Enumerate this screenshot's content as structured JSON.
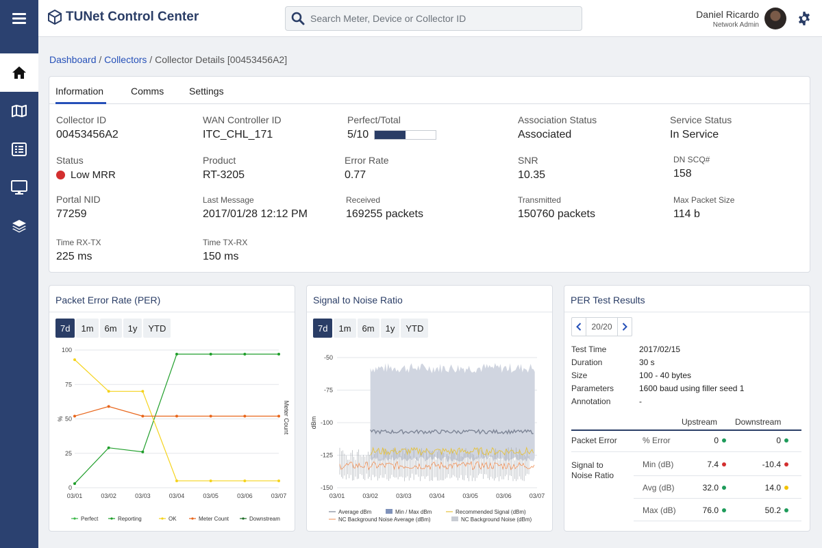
{
  "app": {
    "title": "TUNet Control Center"
  },
  "search": {
    "placeholder": "Search Meter, Device or Collector ID"
  },
  "user": {
    "name": "Daniel Ricardo",
    "role": "Network Admin"
  },
  "sidebar": {
    "items": [
      "home-icon",
      "map-icon",
      "list-icon",
      "monitor-icon",
      "layers-icon"
    ]
  },
  "breadcrumb": {
    "dashboard": "Dashboard",
    "collectors": "Collectors",
    "current": "Collector Details [00453456A2]",
    "sep": " / "
  },
  "tabs": [
    "Information",
    "Comms",
    "Settings"
  ],
  "info": {
    "collector_id": {
      "label": "Collector ID",
      "value": "00453456A2"
    },
    "wan_controller": {
      "label": "WAN Controller ID",
      "value": "ITC_CHL_171"
    },
    "perfect_total": {
      "label": "Perfect/Total",
      "value": "5/10",
      "fraction": 0.5
    },
    "association": {
      "label": "Association Status",
      "value": "Associated"
    },
    "service": {
      "label": "Service Status",
      "value": "In Service"
    },
    "status": {
      "label": "Status",
      "value": "Low MRR",
      "color": "#d32f2f"
    },
    "product": {
      "label": "Product",
      "value": "RT-3205"
    },
    "error_rate": {
      "label": "Error Rate",
      "value": "0.77"
    },
    "snr": {
      "label": "SNR",
      "value": "10.35"
    },
    "dn_scq": {
      "label": "DN SCQ#",
      "value": "158"
    },
    "portal_nid": {
      "label": "Portal NID",
      "value": "77259"
    },
    "last_message": {
      "label": "Last Message",
      "value": "2017/01/28 12:12 PM"
    },
    "received": {
      "label": "Received",
      "value": "169255 packets"
    },
    "transmitted": {
      "label": "Transmitted",
      "value": "150760 packets"
    },
    "max_packet": {
      "label": "Max Packet Size",
      "value": "114 b"
    },
    "time_rx_tx": {
      "label": "Time RX-TX",
      "value": "225 ms"
    },
    "time_tx_rx": {
      "label": "Time TX-RX",
      "value": "150 ms"
    }
  },
  "ranges": [
    "7d",
    "1m",
    "6m",
    "1y",
    "YTD"
  ],
  "per_panel": {
    "title": "Packet Error Rate (PER)"
  },
  "snr_panel": {
    "title": "Signal to Noise Ratio"
  },
  "test_panel": {
    "title": "PER Test Results",
    "pager": "20/20",
    "fields": [
      {
        "k": "Test Time",
        "v": "2017/02/15"
      },
      {
        "k": "Duration",
        "v": "30 s"
      },
      {
        "k": "Size",
        "v": "100 - 40 bytes"
      },
      {
        "k": "Parameters",
        "v": "1600 baud using filler seed 1"
      },
      {
        "k": "Annotation",
        "v": "-"
      }
    ],
    "headers": {
      "upstream": "Upstream",
      "downstream": "Downstream"
    },
    "packet_error": {
      "label": "Packet Error",
      "metric": "% Error",
      "up": "0",
      "down": "0",
      "up_color": "#1e9b5a",
      "down_color": "#1e9b5a"
    },
    "snr_label": "Signal to Noise Ratio",
    "snr_rows": [
      {
        "metric": "Min (dB)",
        "up": "7.4",
        "down": "-10.4",
        "up_color": "#d32f2f",
        "down_color": "#d32f2f"
      },
      {
        "metric": "Avg (dB)",
        "up": "32.0",
        "down": "14.0",
        "up_color": "#1e9b5a",
        "down_color": "#f2c200"
      },
      {
        "metric": "Max (dB)",
        "up": "76.0",
        "down": "50.2",
        "up_color": "#1e9b5a",
        "down_color": "#1e9b5a"
      }
    ]
  },
  "chart_data": [
    {
      "type": "line",
      "title": "Packet Error Rate (PER)",
      "categories": [
        "03/01",
        "03/02",
        "03/03",
        "03/04",
        "03/05",
        "03/06",
        "03/07"
      ],
      "yticks": [
        0,
        25,
        50,
        75,
        100
      ],
      "ylabel": "%",
      "y2label": "Meter Count",
      "ylim": [
        0,
        100
      ],
      "legend_position": "bottom",
      "series": [
        {
          "name": "Perfect",
          "color": "#3cb84a",
          "values": [
            null,
            null,
            null,
            null,
            null,
            null,
            null
          ]
        },
        {
          "name": "Reporting",
          "color": "#1f9e2a",
          "values": [
            3,
            29,
            26,
            97,
            97,
            97,
            97
          ]
        },
        {
          "name": "OK",
          "color": "#f5d31c",
          "values": [
            93,
            70,
            70,
            5,
            5,
            5,
            5
          ]
        },
        {
          "name": "Meter Count",
          "color": "#e8651a",
          "values": [
            52,
            59,
            52,
            52,
            52,
            52,
            52
          ]
        },
        {
          "name": "Downstream",
          "color": "#1d6b26",
          "values": [
            null,
            null,
            null,
            null,
            null,
            null,
            null
          ]
        }
      ]
    },
    {
      "type": "area",
      "title": "Signal to Noise Ratio",
      "categories": [
        "03/01",
        "03/02",
        "03/03",
        "03/04",
        "03/05",
        "03/06",
        "03/07"
      ],
      "yticks": [
        -50,
        -75,
        -100,
        -125,
        -150
      ],
      "ylabel": "dBm",
      "ylim": [
        -150,
        -50
      ],
      "legend_position": "bottom",
      "series": [
        {
          "name": "Average dBm",
          "color": "#7d8596",
          "start": "03/02",
          "level": -107
        },
        {
          "name": "Min / Max dBm",
          "color": "#7f92ba",
          "start": "03/02",
          "range": [
            -130,
            -62
          ]
        },
        {
          "name": "Recommended Signal (dBm)",
          "color": "#e6c23c",
          "start": "03/02",
          "level": -122
        },
        {
          "name": "NC Background Noise Average (dBm)",
          "color": "#f0a070",
          "start": "03/01",
          "level": -133
        },
        {
          "name": "NC Background Noise (dBm)",
          "color": "#c8ccd3",
          "start": "03/01",
          "range": [
            -145,
            -119
          ]
        }
      ]
    }
  ]
}
